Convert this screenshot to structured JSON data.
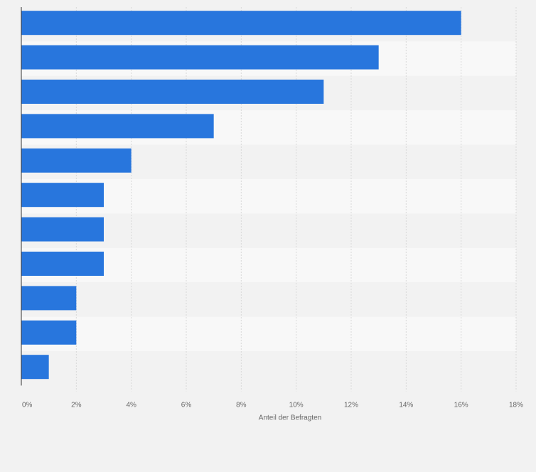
{
  "chart_data": {
    "type": "bar",
    "orientation": "horizontal",
    "categories": [
      "",
      "",
      "",
      "",
      "",
      "",
      "",
      "",
      "",
      "",
      ""
    ],
    "values": [
      16,
      13,
      11,
      7,
      4,
      3,
      3,
      3,
      2,
      2,
      1
    ],
    "unit": "%",
    "xlabel": "Anteil der Befragten",
    "ylabel": "",
    "xlim": [
      0,
      18
    ],
    "xticks": [
      "0%",
      "2%",
      "4%",
      "6%",
      "8%",
      "10%",
      "12%",
      "14%",
      "16%",
      "18%"
    ],
    "grid": true,
    "legend": "none",
    "colors": {
      "bar": "#2876dd",
      "band_dark": "#f2f2f2",
      "band_light": "#f8f8f8",
      "grid": "#d8d8d8",
      "axis": "#333333",
      "text": "#666666"
    }
  }
}
